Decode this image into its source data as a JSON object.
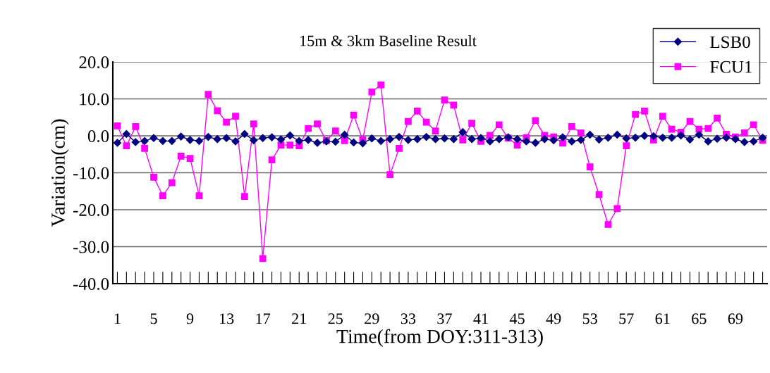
{
  "chart_data": {
    "type": "line",
    "title": "15m & 3km Baseline Result",
    "xlabel": "Time(from DOY:311-313)",
    "ylabel": "Variation(cm)",
    "categories": [
      "1",
      null,
      null,
      null,
      "5",
      null,
      null,
      null,
      "9",
      null,
      null,
      null,
      "13",
      null,
      null,
      null,
      "17",
      null,
      null,
      null,
      "21",
      null,
      null,
      null,
      "25",
      null,
      null,
      null,
      "29",
      null,
      null,
      null,
      "33",
      null,
      null,
      null,
      "37",
      null,
      null,
      null,
      "41",
      null,
      null,
      null,
      "45",
      null,
      null,
      null,
      "49",
      null,
      null,
      null,
      "53",
      null,
      null,
      null,
      "57",
      null,
      null,
      null,
      "61",
      null,
      null,
      null,
      "65",
      null,
      null,
      null,
      "69",
      null,
      null,
      null
    ],
    "series": [
      {
        "name": "LSB0",
        "color": "#000080",
        "marker": "diamond",
        "values": [
          -1.9,
          0.5,
          -1.7,
          -1.4,
          -0.6,
          -1.4,
          -1.4,
          -0.2,
          -1.1,
          -1.4,
          -0.3,
          -0.9,
          -0.6,
          -1.5,
          0.5,
          -1.2,
          -0.6,
          -0.4,
          -1.0,
          0.1,
          -1.4,
          -1.1,
          -1.9,
          -1.5,
          -1.6,
          0.3,
          -1.8,
          -2.0,
          -0.7,
          -1.4,
          -0.9,
          -0.3,
          -1.1,
          -0.9,
          -0.3,
          -0.9,
          -0.7,
          -0.9,
          1.0,
          -0.9,
          -0.6,
          -1.5,
          -0.9,
          -0.4,
          -0.9,
          -1.5,
          -1.9,
          -0.9,
          -1.2,
          -0.4,
          -1.5,
          -1.1,
          0.3,
          -1.0,
          -0.5,
          0.3,
          -0.7,
          -0.5,
          0.0,
          -0.1,
          -0.5,
          -0.5,
          0.1,
          -1.0,
          0.3,
          -1.5,
          -0.8,
          -0.5,
          -0.9,
          -1.7,
          -1.5,
          -0.5
        ]
      },
      {
        "name": "FCU1",
        "color": "#ff00ff",
        "marker": "square",
        "values": [
          2.7,
          -2.7,
          2.5,
          -3.4,
          -11.2,
          -16.2,
          -12.7,
          -5.5,
          -6.1,
          -16.2,
          11.2,
          6.8,
          3.7,
          5.3,
          -16.4,
          3.2,
          -33.2,
          -6.5,
          -2.5,
          -2.5,
          -2.7,
          2.0,
          3.2,
          -1.3,
          1.3,
          -1.3,
          5.6,
          -1.1,
          11.9,
          13.8,
          -10.5,
          -3.4,
          3.9,
          6.7,
          3.7,
          1.3,
          9.7,
          8.3,
          -1.1,
          3.4,
          -1.5,
          0.1,
          3.0,
          -0.6,
          -2.5,
          -0.5,
          4.1,
          0.1,
          -0.3,
          -2.0,
          2.5,
          0.8,
          -8.4,
          -15.9,
          -24.0,
          -19.7,
          -2.7,
          5.8,
          6.7,
          -1.1,
          5.3,
          1.8,
          1.0,
          3.9,
          1.8,
          2.0,
          4.8,
          0.4,
          -0.3,
          0.8,
          3.0,
          -1.2
        ]
      }
    ],
    "ylim": [
      -40,
      20
    ],
    "yticks": [
      {
        "value": -40,
        "label": "-40.0"
      },
      {
        "value": -30,
        "label": "-30.0"
      },
      {
        "value": -20,
        "label": "-20.0"
      },
      {
        "value": -10,
        "label": "-10.0"
      },
      {
        "value": 0,
        "label": "0.0"
      },
      {
        "value": 10,
        "label": "10.0"
      },
      {
        "value": 20,
        "label": "20.0"
      }
    ],
    "grid": "y",
    "legend": "top right",
    "line_style": "solid"
  }
}
